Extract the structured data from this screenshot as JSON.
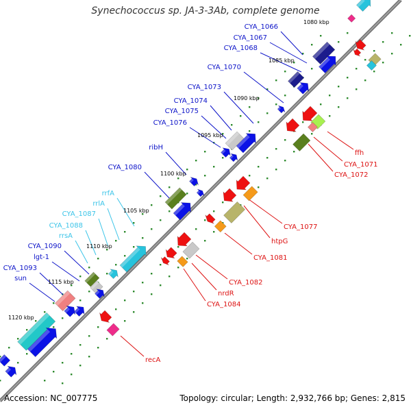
{
  "title": "Synechococcus sp. JA-3-3Ab, complete genome",
  "accession": "Accession: NC_007775",
  "summary": "Topology: circular; Length: 2,932,766 bp; Genes: 2,815",
  "colors": {
    "blue": "#0b12e6",
    "navy": "#1c1c8c",
    "red": "#ee1111",
    "orange": "#f59a1a",
    "green": "#5a7f1e",
    "khaki": "#b8b46a",
    "cyan": "#27c3dc",
    "teal": "#22c8c8",
    "gray": "#c9c9c9",
    "pink": "#f08080",
    "magenta": "#ee2c8a",
    "lime": "#a8f050",
    "label_blue": "#0b12c8",
    "label_red": "#dd1111",
    "label_cyan": "#3bc4e8",
    "tick_green": "#2e8b2e"
  },
  "kbp_ticks": [
    "1080 kbp",
    "1085 kbp",
    "1090 kbp",
    "1095 kbp",
    "1100 kbp",
    "1105 kbp",
    "1110 kbp",
    "1115 kbp",
    "1120 kbp"
  ],
  "labels_upper": [
    {
      "text": "CYA_1066",
      "color": "blue"
    },
    {
      "text": "CYA_1067",
      "color": "blue"
    },
    {
      "text": "CYA_1068",
      "color": "blue"
    },
    {
      "text": "CYA_1070",
      "color": "blue"
    },
    {
      "text": "CYA_1073",
      "color": "blue"
    },
    {
      "text": "CYA_1074",
      "color": "blue"
    },
    {
      "text": "CYA_1075",
      "color": "blue"
    },
    {
      "text": "CYA_1076",
      "color": "blue"
    },
    {
      "text": "ribH",
      "color": "blue"
    },
    {
      "text": "CYA_1080",
      "color": "blue"
    },
    {
      "text": "rrfA",
      "color": "cyan"
    },
    {
      "text": "rrlA",
      "color": "cyan"
    },
    {
      "text": "CYA_1087",
      "color": "cyan"
    },
    {
      "text": "CYA_1088",
      "color": "cyan"
    },
    {
      "text": "rrsA",
      "color": "cyan"
    },
    {
      "text": "CYA_1090",
      "color": "blue"
    },
    {
      "text": "lgt-1",
      "color": "blue"
    },
    {
      "text": "CYA_1093",
      "color": "blue"
    },
    {
      "text": "sun",
      "color": "blue"
    }
  ],
  "labels_lower": [
    {
      "text": "ffh",
      "color": "red"
    },
    {
      "text": "CYA_1071",
      "color": "red"
    },
    {
      "text": "CYA_1072",
      "color": "red"
    },
    {
      "text": "CYA_1077",
      "color": "red"
    },
    {
      "text": "htpG",
      "color": "red"
    },
    {
      "text": "CYA_1081",
      "color": "red"
    },
    {
      "text": "CYA_1082",
      "color": "red"
    },
    {
      "text": "nrdR",
      "color": "red"
    },
    {
      "text": "CYA_1084",
      "color": "red"
    },
    {
      "text": "recA",
      "color": "red"
    }
  ]
}
